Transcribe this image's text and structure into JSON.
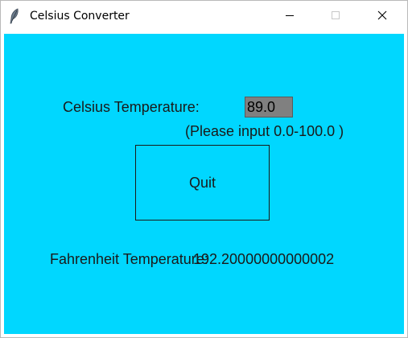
{
  "window": {
    "title": "Celsius Converter",
    "icon": "feather-icon",
    "controls": {
      "minimize": "minimize-icon",
      "maximize": "maximize-icon",
      "close": "close-icon"
    }
  },
  "colors": {
    "background": "#00d7ff",
    "entry_background": "#808080",
    "text": "#1a1a1a"
  },
  "form": {
    "celsius_label": "Celsius Temperature:",
    "celsius_value": "89.0",
    "hint": "(Please input 0.0-100.0 )",
    "quit_label": "Quit",
    "fahrenheit_label": "Fahrenheit Temperature:",
    "fahrenheit_value": "192.20000000000002"
  }
}
